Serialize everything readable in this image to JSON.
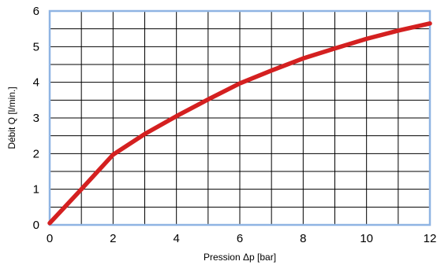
{
  "chart_data": {
    "type": "line",
    "xlabel": "Pression Δp [bar]",
    "ylabel": "Débit Q [l/min.]",
    "xlim": [
      0,
      12
    ],
    "ylim": [
      0,
      6
    ],
    "x_ticks": [
      0,
      2,
      4,
      6,
      8,
      10,
      12
    ],
    "y_ticks": [
      0,
      1,
      2,
      3,
      4,
      5,
      6
    ],
    "x_tick_labels": [
      "0",
      "2",
      "4",
      "6",
      "8",
      "10",
      "12"
    ],
    "y_tick_labels": [
      "0",
      "1",
      "2",
      "3",
      "4",
      "5",
      "6"
    ],
    "grid": true,
    "series": [
      {
        "color": "#d42020",
        "x": [
          0,
          1,
          2,
          3,
          4,
          5,
          6,
          7,
          8,
          9,
          10,
          11,
          12
        ],
        "y": [
          0.05,
          1.0,
          1.97,
          2.55,
          3.05,
          3.52,
          3.97,
          4.33,
          4.67,
          4.95,
          5.22,
          5.45,
          5.65
        ]
      }
    ],
    "colors": {
      "frame": "#8fb4e3",
      "grid": "#000000"
    }
  }
}
